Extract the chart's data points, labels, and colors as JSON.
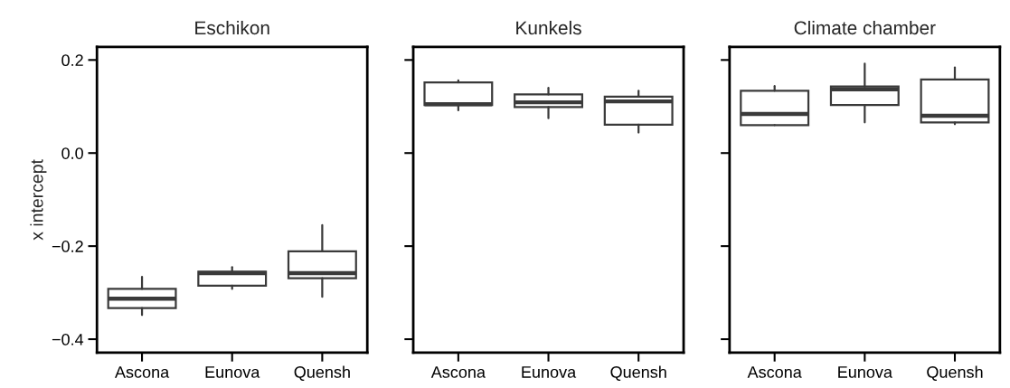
{
  "chart_data": [
    {
      "type": "box",
      "title": "Eschikon",
      "ylabel": "x intercept",
      "categories": [
        "Ascona",
        "Eunova",
        "Quensh"
      ],
      "ylim": [
        -0.429,
        0.228
      ],
      "yticks": [
        {
          "value": -0.4,
          "label": "−0.4"
        },
        {
          "value": -0.2,
          "label": "−0.2"
        },
        {
          "value": 0.0,
          "label": "0.0"
        },
        0.2
      ],
      "color": "#3a3a3a",
      "grid": false,
      "boxes": [
        {
          "low": -0.348,
          "q1": -0.333,
          "median": -0.313,
          "q3": -0.292,
          "high": -0.266
        },
        {
          "low": -0.292,
          "q1": -0.285,
          "median": -0.258,
          "q3": -0.255,
          "high": -0.245
        },
        {
          "low": -0.309,
          "q1": -0.269,
          "median": -0.258,
          "q3": -0.211,
          "high": -0.155
        }
      ]
    },
    {
      "type": "box",
      "title": "Kunkels",
      "categories": [
        "Ascona",
        "Eunova",
        "Quensh"
      ],
      "ylim": [
        -0.429,
        0.228
      ],
      "yticks": [
        {
          "value": -0.4,
          "label": null
        },
        {
          "value": -0.2,
          "label": null
        },
        {
          "value": 0.0,
          "label": null
        },
        {
          "value": 0.2,
          "label": null
        }
      ],
      "tick_labels": "x",
      "color": "#3a3a3a",
      "grid": false,
      "boxes": [
        {
          "low": 0.092,
          "q1": 0.103,
          "median": 0.105,
          "q3": 0.152,
          "high": 0.156
        },
        {
          "low": 0.075,
          "q1": 0.099,
          "median": 0.109,
          "q3": 0.126,
          "high": 0.14
        },
        {
          "low": 0.044,
          "q1": 0.061,
          "median": 0.111,
          "q3": 0.121,
          "high": 0.134
        }
      ]
    },
    {
      "type": "box",
      "title": "Climate chamber",
      "categories": [
        "Ascona",
        "Eunova",
        "Quensh"
      ],
      "ylim": [
        -0.429,
        0.228
      ],
      "yticks": [
        {
          "value": -0.4,
          "label": null
        },
        {
          "value": -0.2,
          "label": null
        },
        {
          "value": 0.0,
          "label": null
        },
        {
          "value": 0.2,
          "label": null
        }
      ],
      "tick_labels": "x",
      "color": "#3a3a3a",
      "grid": false,
      "boxes": [
        {
          "low": 0.06,
          "q1": 0.06,
          "median": 0.084,
          "q3": 0.134,
          "high": 0.144
        },
        {
          "low": 0.066,
          "q1": 0.103,
          "median": 0.137,
          "q3": 0.143,
          "high": 0.192
        },
        {
          "low": 0.062,
          "q1": 0.066,
          "median": 0.08,
          "q3": 0.158,
          "high": 0.184
        }
      ]
    }
  ]
}
